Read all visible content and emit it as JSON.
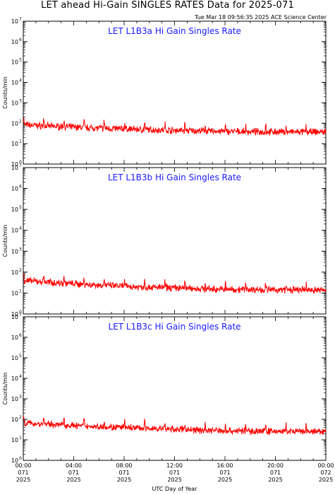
{
  "header": {
    "title": "LET ahead Hi-Gain SINGLES RATES Data for 2025-071",
    "timestamp": "Tue Mar 18 09:56:35 2025 ACE Science Center"
  },
  "colors": {
    "series": "#ff0000",
    "panel_title": "#1a1aff",
    "axes": "#000000"
  },
  "chart_data": [
    {
      "type": "line",
      "title": "LET L1B3a Hi Gain Singles Rate",
      "ylabel": "Counts/min",
      "yscale": "log",
      "ylim": [
        1,
        10000000
      ],
      "xlim": [
        0,
        24
      ],
      "series": [
        {
          "x": [
            0,
            2,
            4,
            6,
            8,
            10,
            12,
            14,
            16,
            18,
            20,
            22,
            24
          ],
          "values": [
            85,
            72,
            65,
            58,
            53,
            48,
            45,
            42,
            40,
            38,
            38,
            37,
            38
          ]
        }
      ]
    },
    {
      "type": "line",
      "title": "LET L1B3b Hi Gain Singles Rate",
      "ylabel": "Counts/min",
      "yscale": "log",
      "ylim": [
        1,
        10000000
      ],
      "xlim": [
        0,
        24
      ],
      "series": [
        {
          "x": [
            0,
            2,
            4,
            6,
            8,
            10,
            12,
            14,
            16,
            18,
            20,
            22,
            24
          ],
          "values": [
            40,
            33,
            28,
            24,
            21,
            19,
            18,
            16,
            15,
            15,
            14,
            14,
            14
          ]
        }
      ]
    },
    {
      "type": "line",
      "title": "LET L1B3c Hi Gain Singles Rate",
      "ylabel": "Counts/min",
      "yscale": "log",
      "ylim": [
        1,
        10000000
      ],
      "xlim": [
        0,
        24
      ],
      "series": [
        {
          "x": [
            0,
            2,
            4,
            6,
            8,
            10,
            12,
            14,
            16,
            18,
            20,
            22,
            24
          ],
          "values": [
            65,
            58,
            50,
            44,
            40,
            36,
            33,
            30,
            28,
            27,
            26,
            25,
            25
          ]
        }
      ]
    }
  ],
  "x_axis": {
    "label": "UTC Day of Year",
    "ticks": [
      {
        "hour": 0,
        "time": "00:00",
        "doy": "071",
        "year": "2025"
      },
      {
        "hour": 4,
        "time": "04:00",
        "doy": "071",
        "year": "2025"
      },
      {
        "hour": 8,
        "time": "08:00",
        "doy": "071",
        "year": "2025"
      },
      {
        "hour": 12,
        "time": "12:00",
        "doy": "071",
        "year": "2025"
      },
      {
        "hour": 16,
        "time": "16:00",
        "doy": "071",
        "year": "2025"
      },
      {
        "hour": 20,
        "time": "20:00",
        "doy": "071",
        "year": "2025"
      },
      {
        "hour": 24,
        "time": "00:00",
        "doy": "072",
        "year": "2025"
      }
    ]
  }
}
